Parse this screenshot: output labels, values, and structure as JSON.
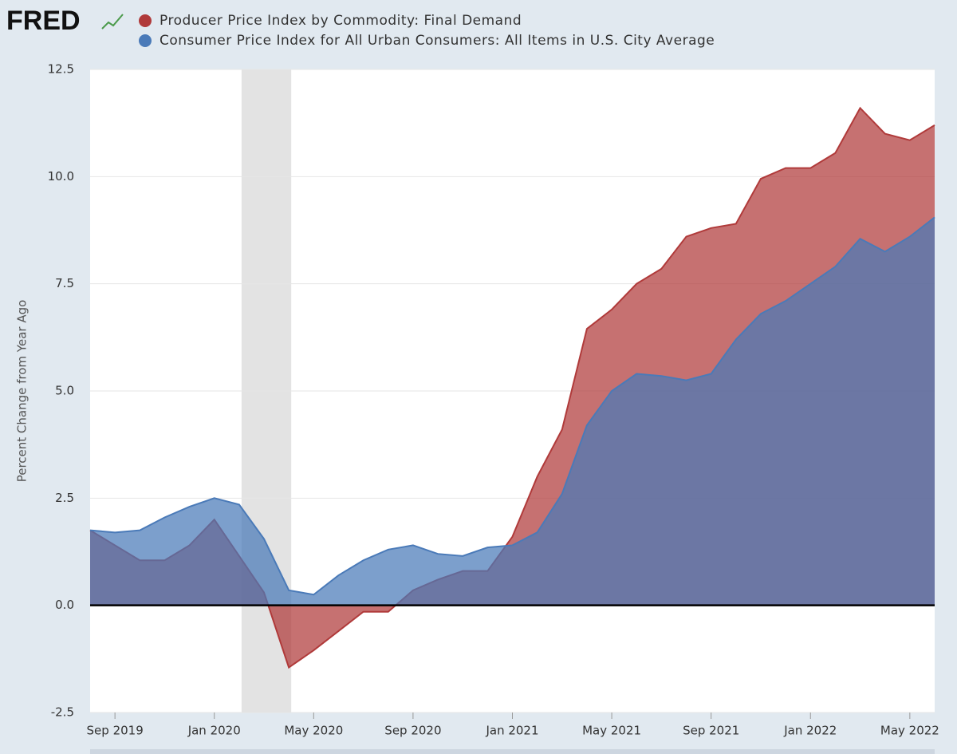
{
  "chart_data": {
    "type": "area",
    "logo": "FRED",
    "y_label": "Percent Change from Year Ago",
    "x": [
      "2019-08",
      "2019-09",
      "2019-10",
      "2019-11",
      "2019-12",
      "2020-01",
      "2020-02",
      "2020-03",
      "2020-04",
      "2020-05",
      "2020-06",
      "2020-07",
      "2020-08",
      "2020-09",
      "2020-10",
      "2020-11",
      "2020-12",
      "2021-01",
      "2021-02",
      "2021-03",
      "2021-04",
      "2021-05",
      "2021-06",
      "2021-07",
      "2021-08",
      "2021-09",
      "2021-10",
      "2021-11",
      "2021-12",
      "2022-01",
      "2022-02",
      "2022-03",
      "2022-04",
      "2022-05",
      "2022-06"
    ],
    "series": [
      {
        "name": "Producer Price Index by Commodity: Final Demand",
        "color": "#b03a3a",
        "values": [
          1.75,
          1.4,
          1.05,
          1.05,
          1.4,
          2.0,
          1.15,
          0.3,
          -1.45,
          -1.05,
          -0.6,
          -0.15,
          -0.15,
          0.35,
          0.6,
          0.8,
          0.8,
          1.6,
          3.0,
          4.1,
          6.45,
          6.9,
          7.5,
          7.85,
          8.6,
          8.8,
          8.9,
          9.95,
          10.2,
          10.2,
          10.55,
          11.6,
          11.0,
          10.85,
          11.2
        ]
      },
      {
        "name": "Consumer Price Index for All Urban Consumers: All Items in U.S. City Average",
        "color": "#4a7ab8",
        "values": [
          1.75,
          1.7,
          1.75,
          2.05,
          2.3,
          2.5,
          2.35,
          1.55,
          0.35,
          0.25,
          0.7,
          1.05,
          1.3,
          1.4,
          1.2,
          1.15,
          1.35,
          1.4,
          1.7,
          2.6,
          4.2,
          5.0,
          5.4,
          5.35,
          5.25,
          5.4,
          6.2,
          6.8,
          7.1,
          7.5,
          7.9,
          8.55,
          8.25,
          8.6,
          9.05
        ]
      }
    ],
    "xlim": [
      "2019-08",
      "2022-06"
    ],
    "xticks": [
      {
        "value": "2019-09",
        "label": "Sep 2019"
      },
      {
        "value": "2020-01",
        "label": "Jan 2020"
      },
      {
        "value": "2020-05",
        "label": "May 2020"
      },
      {
        "value": "2020-09",
        "label": "Sep 2020"
      },
      {
        "value": "2021-01",
        "label": "Jan 2021"
      },
      {
        "value": "2021-05",
        "label": "May 2021"
      },
      {
        "value": "2021-09",
        "label": "Sep 2021"
      },
      {
        "value": "2022-01",
        "label": "Jan 2022"
      },
      {
        "value": "2022-05",
        "label": "May 2022"
      }
    ],
    "ylim": [
      -2.5,
      12.5
    ],
    "yticks": [
      -2.5,
      {
        "value": 0,
        "label": "0.0"
      },
      2.5,
      {
        "value": 5,
        "label": "5.0"
      },
      7.5,
      {
        "value": 10,
        "label": "10.0"
      },
      12.5
    ],
    "shaded_period": [
      "2020-02",
      "2020-04"
    ],
    "grid": true
  }
}
